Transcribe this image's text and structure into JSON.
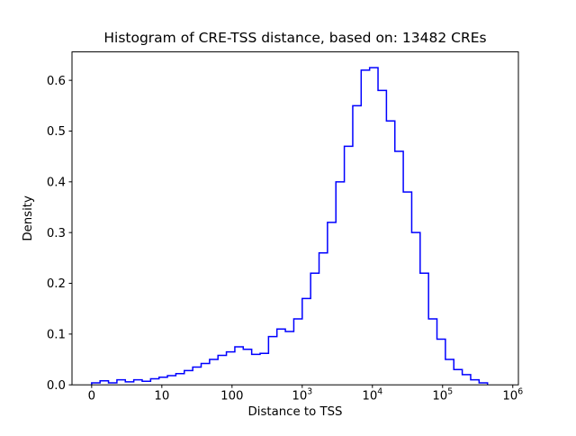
{
  "title": "Histogram of CRE-TSS distance, based on: 13482 CREs",
  "chart_data": {
    "type": "bar",
    "subtype": "step-histogram",
    "title": "Histogram of CRE-TSS distance, based on: 13482 CREs",
    "xlabel": "Distance to TSS",
    "ylabel": "Density",
    "n_cres": 13482,
    "line_color": "#0000ff",
    "x_scale": "log10 positions; tick at position p represents distance 10^p, leftmost tick labeled 0",
    "x_tick_positions": [
      0,
      1,
      2,
      3,
      4,
      5,
      6
    ],
    "x_tick_labels": [
      "0",
      "10",
      "100",
      "10^3",
      "10^4",
      "10^5",
      "10^6"
    ],
    "y_tick_values": [
      0.0,
      0.1,
      0.2,
      0.3,
      0.4,
      0.5,
      0.6
    ],
    "y_tick_labels": [
      "0.0",
      "0.1",
      "0.2",
      "0.3",
      "0.4",
      "0.5",
      "0.6"
    ],
    "xlim_pos": [
      -0.28,
      6.08
    ],
    "ylim": [
      0,
      0.656
    ],
    "grid": false,
    "legend": "none",
    "bins": {
      "start_pos": 0.0,
      "width_pos": 0.12,
      "heights": [
        0.004,
        0.008,
        0.004,
        0.01,
        0.006,
        0.01,
        0.007,
        0.012,
        0.015,
        0.018,
        0.022,
        0.028,
        0.035,
        0.042,
        0.05,
        0.058,
        0.065,
        0.075,
        0.07,
        0.06,
        0.062,
        0.095,
        0.11,
        0.105,
        0.13,
        0.17,
        0.22,
        0.26,
        0.32,
        0.4,
        0.47,
        0.55,
        0.62,
        0.625,
        0.58,
        0.52,
        0.46,
        0.38,
        0.3,
        0.22,
        0.13,
        0.09,
        0.05,
        0.03,
        0.02,
        0.01,
        0.004
      ]
    }
  }
}
